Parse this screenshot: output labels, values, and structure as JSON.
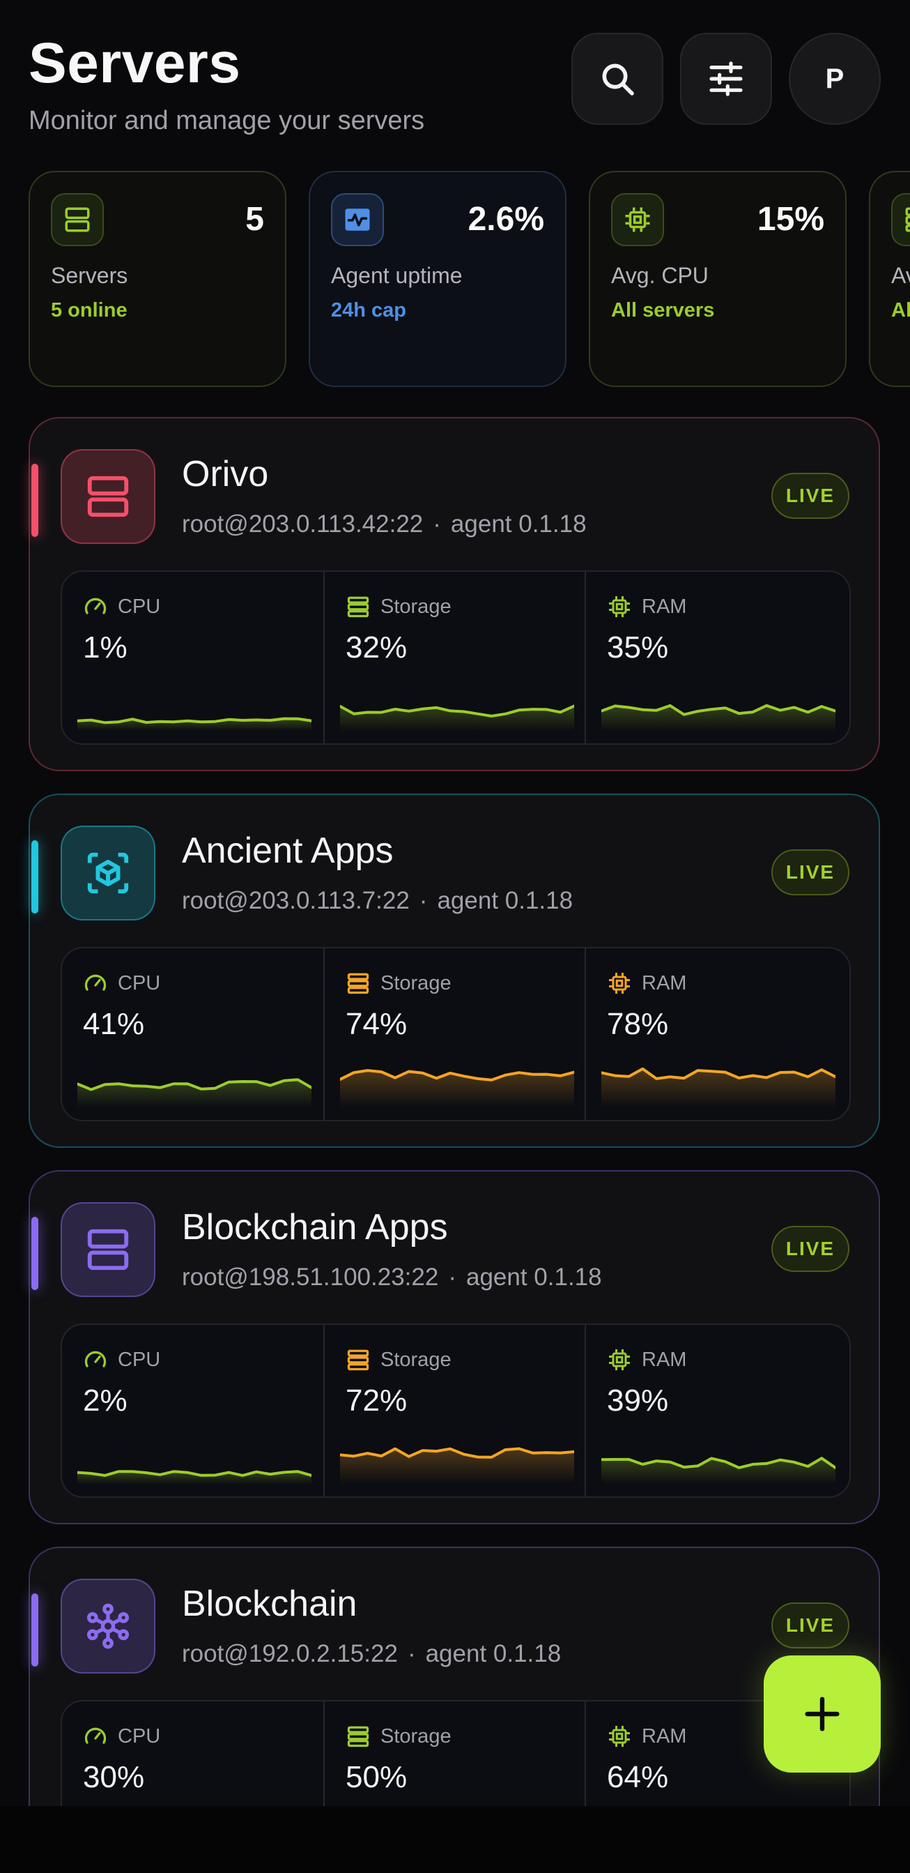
{
  "header": {
    "title": "Servers",
    "subtitle": "Monitor and manage your servers",
    "avatar_initial": "P",
    "search_icon": "search-icon",
    "filter_icon": "sliders-icon"
  },
  "stats": [
    {
      "value": "5",
      "label": "Servers",
      "sub": "5 online",
      "icon": "server-icon",
      "accent": "#9ccc2c"
    },
    {
      "value": "2.6%",
      "label": "Agent uptime",
      "sub": "24h cap",
      "icon": "activity-icon",
      "accent": "#4f8fe6"
    },
    {
      "value": "15%",
      "label": "Avg. CPU",
      "sub": "All servers",
      "icon": "cpu-icon",
      "accent": "#9ccc2c"
    },
    {
      "value": "",
      "label": "Av",
      "sub": "Al",
      "icon": "storage-icon",
      "accent": "#9ccc2c"
    }
  ],
  "servers": [
    {
      "name": "Orivo",
      "host": "root@203.0.113.42:22",
      "agent": "agent 0.1.18",
      "status": "LIVE",
      "icon": "server-icon",
      "accent": "#f4506a",
      "metrics": {
        "cpu": {
          "label": "CPU",
          "value": "1%"
        },
        "storage": {
          "label": "Storage",
          "value": "32%"
        },
        "ram": {
          "label": "RAM",
          "value": "35%"
        }
      }
    },
    {
      "name": "Ancient Apps",
      "host": "root@203.0.113.7:22",
      "agent": "agent 0.1.18",
      "status": "LIVE",
      "icon": "cube-icon",
      "accent": "#22c7e0",
      "metrics": {
        "cpu": {
          "label": "CPU",
          "value": "41%"
        },
        "storage": {
          "label": "Storage",
          "value": "74%"
        },
        "ram": {
          "label": "RAM",
          "value": "78%"
        }
      }
    },
    {
      "name": "Blockchain Apps",
      "host": "root@198.51.100.23:22",
      "agent": "agent 0.1.18",
      "status": "LIVE",
      "icon": "server-icon",
      "accent": "#8b6cf0",
      "metrics": {
        "cpu": {
          "label": "CPU",
          "value": "2%"
        },
        "storage": {
          "label": "Storage",
          "value": "72%"
        },
        "ram": {
          "label": "RAM",
          "value": "39%"
        }
      }
    },
    {
      "name": "Blockchain",
      "host": "root@192.0.2.15:22",
      "agent": "agent 0.1.18",
      "status": "LIVE",
      "icon": "network-icon",
      "accent": "#8b6cf0",
      "metrics": {
        "cpu": {
          "label": "CPU",
          "value": "30%"
        },
        "storage": {
          "label": "Storage",
          "value": "50%"
        },
        "ram": {
          "label": "RAM",
          "value": "64%"
        }
      }
    }
  ],
  "colors": {
    "ok": "#9ccc2c",
    "warn": "#f5a524",
    "bg": "#09090b"
  },
  "fab": {
    "icon": "plus-icon"
  }
}
